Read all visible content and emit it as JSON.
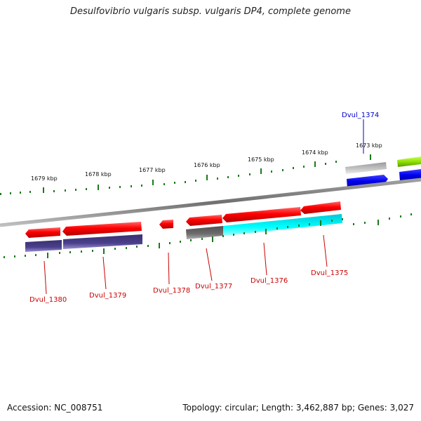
{
  "title": "Desulfovibrio vulgaris subsp. vulgaris DP4, complete genome",
  "footer": {
    "accession": "Accession: NC_008751",
    "stats": "Topology: circular; Length: 3,462,887 bp; Genes: 3,027"
  },
  "kbp_labels": [
    "1679 kbp",
    "1678 kbp",
    "1677 kbp",
    "1676 kbp",
    "1675 kbp",
    "1674 kbp",
    "1673 kbp"
  ],
  "gene_labels": [
    "Dvul_1380",
    "Dvul_1379",
    "Dvul_1378",
    "Dvul_1377",
    "Dvul_1376",
    "Dvul_1375",
    "Dvul_1374"
  ],
  "colors": {
    "cds": "#ff0000",
    "cog_purple": "#4a3f8c",
    "cog_cyan": "#00e5ee",
    "cog_gray": "#6e6e6e",
    "cog_light_gray": "#bdbdbd",
    "cog_green": "#8fe000",
    "cds_blue": "#0000ee",
    "tick": "#1a7a1a",
    "backbone": "#808080"
  }
}
